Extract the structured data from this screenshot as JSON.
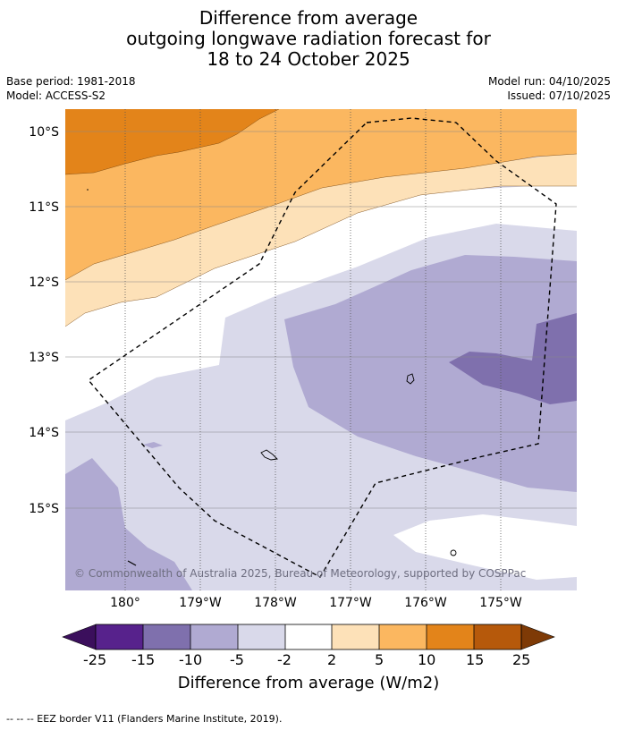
{
  "title": {
    "line1": "Difference from average",
    "line2": "outgoing longwave radiation forecast for",
    "line3": "18 to 24 October 2025"
  },
  "meta": {
    "base_period": "Base period: 1981-2018",
    "model": "Model: ACCESS-S2",
    "model_run": "Model run: 04/10/2025",
    "issued": "Issued: 07/10/2025"
  },
  "map": {
    "lat_labels": [
      "10°S",
      "11°S",
      "12°S",
      "13°S",
      "14°S",
      "15°S"
    ],
    "lon_labels": [
      "180°",
      "179°W",
      "178°W",
      "177°W",
      "176°W",
      "175°W"
    ],
    "copyright": "© Commonwealth of Australia 2025, Bureau of Meteorology, supported by COSPPac",
    "legend_colors": {
      "lt_minus25": "#3b0f5c",
      "m25_m15": "#57228c",
      "m15_m10": "#7f70ad",
      "m10_m5": "#b0aad2",
      "m5_m2": "#d9d9ea",
      "m2_2": "#ffffff",
      "p2_5": "#fde1b8",
      "p5_10": "#fbb760",
      "p10_15": "#e3841a",
      "p15_25": "#b6590b",
      "gt_25": "#7e3a06"
    }
  },
  "colorbar": {
    "ticks": [
      "-25",
      "-15",
      "-10",
      "-5",
      "-2",
      "2",
      "5",
      "10",
      "15",
      "25"
    ],
    "title": "Difference from average (W/m2)"
  },
  "footnote": "--  --  -- EEZ border V11 (Flanders Marine Institute, 2019)."
}
